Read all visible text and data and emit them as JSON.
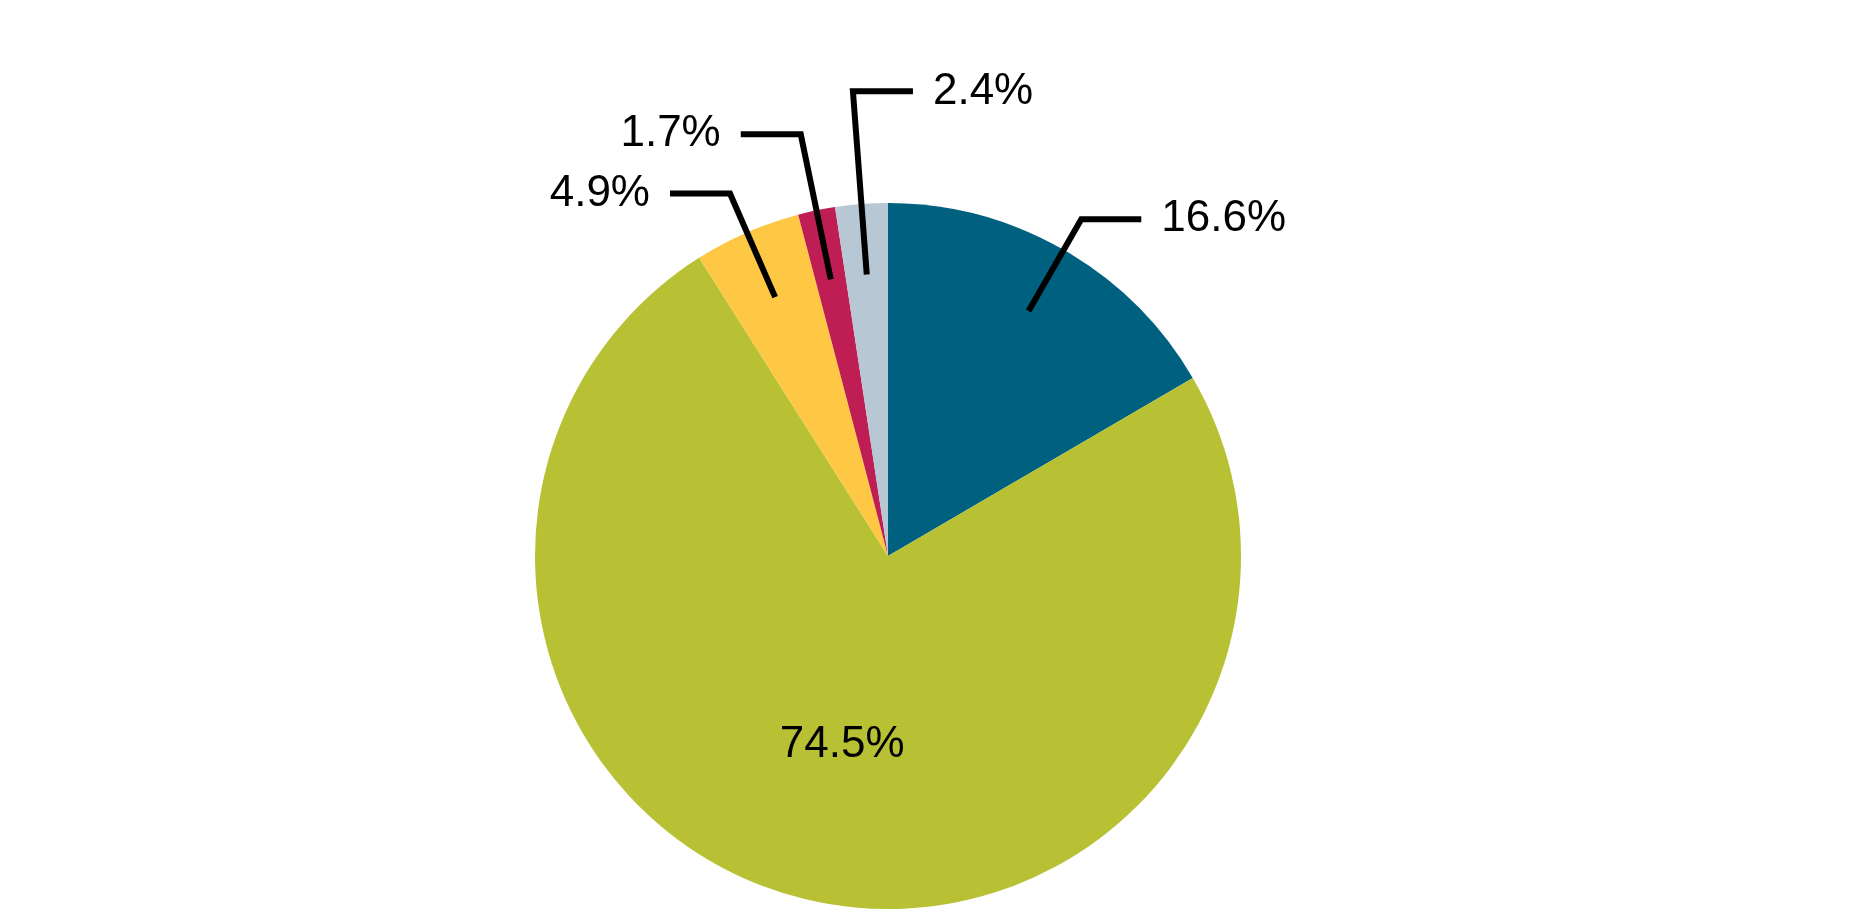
{
  "chart_data": {
    "type": "pie",
    "categories": [
      null,
      null,
      null,
      null,
      null
    ],
    "values": [
      16.6,
      74.5,
      4.9,
      1.7,
      2.4
    ],
    "colors": [
      "#006080",
      "#b8c134",
      "#fec844",
      "#bf1e55",
      "#b8c7d4"
    ],
    "value_labels": [
      "16.6%",
      "74.5%",
      "4.9%",
      "1.7%",
      "2.4%"
    ],
    "legend": false
  }
}
